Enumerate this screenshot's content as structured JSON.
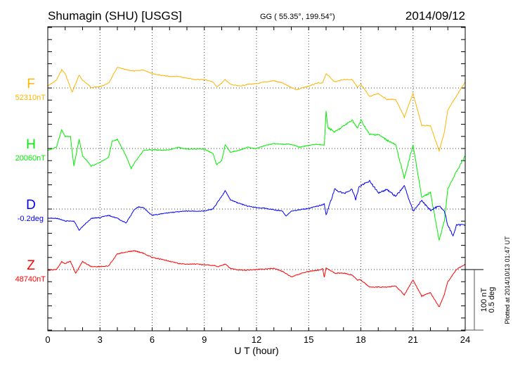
{
  "header": {
    "station": "Shumagin (SHU)  [USGS]",
    "coords": "GG ( 55.35°, 199.54°)",
    "date": "2014/09/12"
  },
  "footer": {
    "plotted": "Plotted at 2014/10/13 01:47 UT",
    "scale_nt": "100 nT",
    "scale_deg": "0.5 deg"
  },
  "chart_data": {
    "type": "line",
    "title": "Shumagin (SHU)  [USGS]",
    "xlabel": "U T (hour)",
    "xlim": [
      0,
      24
    ],
    "xticks": [
      "0",
      "3",
      "6",
      "9",
      "12",
      "15",
      "18",
      "21",
      "24"
    ],
    "scale": {
      "nT_per_division": 100,
      "deg_per_division": 0.5
    },
    "grid": true,
    "series": [
      {
        "name": "F",
        "baseline_label": "52310nT",
        "unit": "nT",
        "color": "#FFB400",
        "x": [
          0,
          0.5,
          0.8,
          1,
          1.4,
          1.8,
          2,
          2.5,
          3,
          3.5,
          4,
          4.5,
          5,
          5.5,
          6,
          6.5,
          7,
          7.5,
          8,
          8.5,
          9,
          9.5,
          9.7,
          10,
          10.2,
          10.5,
          11,
          11.5,
          12,
          12.5,
          13,
          13.5,
          14,
          14.3,
          14.5,
          15,
          15.5,
          15.8,
          16,
          16.5,
          17,
          17.5,
          17.8,
          18,
          18.5,
          19,
          19.5,
          20,
          20.5,
          21,
          21.5,
          22,
          22.5,
          22.8,
          23,
          23.5,
          24
        ],
        "y": [
          3,
          13,
          30,
          24,
          -7,
          21,
          13,
          1,
          2,
          8,
          34,
          30,
          28,
          30,
          24,
          21,
          19,
          19,
          16,
          14,
          14,
          10,
          2,
          8,
          14,
          6,
          3,
          6,
          7,
          10,
          12,
          8,
          1,
          -3,
          -1,
          3,
          8,
          8,
          24,
          10,
          14,
          14,
          1,
          6,
          -14,
          -9,
          -19,
          -19,
          -48,
          -9,
          -62,
          -62,
          -104,
          -73,
          -36,
          -13,
          10
        ]
      },
      {
        "name": "H",
        "baseline_label": "20060nT",
        "unit": "nT",
        "color": "#00EE00",
        "x": [
          0,
          0.5,
          0.8,
          1,
          1.3,
          1.5,
          1.8,
          2,
          2.5,
          3,
          3.5,
          3.7,
          4,
          4.5,
          4.8,
          5,
          5.5,
          6,
          6.5,
          7,
          7.5,
          8,
          8.5,
          9,
          9.5,
          9.7,
          10,
          10.2,
          10.5,
          11,
          11.5,
          12,
          12.5,
          13,
          13.5,
          14,
          14.5,
          15,
          15.5,
          15.9,
          16,
          16.1,
          16.5,
          17,
          17.5,
          17.8,
          18,
          18.5,
          19,
          19.5,
          20,
          20.5,
          21,
          21.5,
          22,
          22.5,
          22.8,
          23,
          23.5,
          24
        ],
        "y": [
          -3,
          2,
          31,
          20,
          20,
          -29,
          15,
          -12,
          -29,
          -23,
          -14,
          12,
          15,
          -12,
          -33,
          -23,
          -3,
          -2,
          -3,
          -2,
          2,
          -1,
          -1,
          -1,
          -8,
          -27,
          -20,
          6,
          -6,
          -3,
          2,
          0,
          5,
          8,
          7,
          7,
          2,
          5,
          7,
          5,
          63,
          35,
          27,
          37,
          47,
          33,
          47,
          23,
          23,
          14,
          6,
          -49,
          6,
          -81,
          -73,
          -151,
          -120,
          -66,
          -38,
          -12
        ]
      },
      {
        "name": "D",
        "baseline_label": "-0.2deg",
        "unit": "deg",
        "color": "#0000FF",
        "x": [
          0,
          0.5,
          1,
          1.5,
          1.8,
          2,
          2.5,
          3,
          3.5,
          4,
          4.5,
          5,
          5.2,
          5.5,
          6,
          6.5,
          7,
          7.5,
          8,
          8.5,
          9,
          9.5,
          10,
          10.2,
          10.5,
          11,
          11.5,
          12,
          12.5,
          13,
          13.5,
          13.7,
          14,
          14.5,
          15,
          15.5,
          15.9,
          16,
          16.5,
          17,
          17.5,
          17.7,
          17.9,
          18.5,
          19,
          19.5,
          20,
          20.5,
          21,
          21.5,
          22,
          22.5,
          22.8,
          23,
          23.3,
          23.5,
          24
        ],
        "y": [
          -0.076,
          -0.076,
          -0.099,
          -0.099,
          -0.174,
          -0.145,
          -0.076,
          -0.07,
          -0.052,
          -0.076,
          -0.116,
          0,
          0.017,
          0.012,
          -0.052,
          -0.041,
          -0.029,
          -0.023,
          -0.017,
          -0.017,
          -0.017,
          0,
          0.105,
          0.151,
          0.076,
          0.047,
          0.023,
          0.012,
          0.006,
          -0.006,
          -0.017,
          -0.058,
          -0.017,
          -0.006,
          0.006,
          0.023,
          0.041,
          -0.047,
          0.163,
          0.128,
          0.163,
          0.076,
          0.186,
          0.233,
          0.134,
          0.163,
          0.105,
          0.192,
          -0.017,
          0.07,
          -0.012,
          0.029,
          -0.017,
          -0.134,
          -0.221,
          -0.134,
          -0.128
        ]
      },
      {
        "name": "Z",
        "baseline_label": "48740nT",
        "unit": "nT",
        "color": "#FF0000",
        "x": [
          0,
          0.5,
          0.8,
          1,
          1.3,
          1.6,
          2,
          2.5,
          3,
          3.5,
          4,
          4.5,
          5,
          5.5,
          6,
          6.5,
          7,
          7.5,
          8,
          8.5,
          9,
          9.5,
          9.8,
          10.2,
          10.5,
          11,
          11.5,
          12,
          12.5,
          13,
          13.5,
          14,
          14.5,
          15,
          15.5,
          15.8,
          15.9,
          16,
          16.5,
          17,
          17.5,
          17.8,
          18,
          18.5,
          19,
          19.5,
          20,
          20.5,
          21,
          21.5,
          22,
          22.5,
          22.8,
          23,
          23.5,
          24
        ],
        "y": [
          -1,
          0,
          13,
          10,
          14,
          -6,
          13,
          5,
          5,
          6,
          26,
          29,
          31,
          27,
          20,
          17,
          14,
          10,
          9,
          9,
          8,
          7,
          5,
          9,
          2,
          -1,
          -1,
          0,
          1,
          2,
          -3,
          -12,
          -7,
          -3,
          -1,
          1,
          -12,
          3,
          -6,
          -6,
          -9,
          -17,
          -17,
          -29,
          -29,
          -29,
          -27,
          -42,
          -17,
          -44,
          -38,
          -62,
          -41,
          -20,
          0,
          9
        ]
      }
    ]
  }
}
